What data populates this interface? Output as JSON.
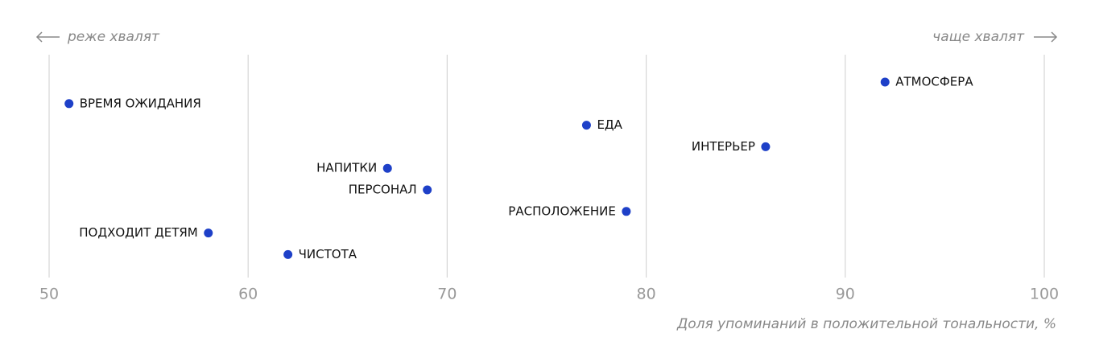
{
  "chart_data": {
    "type": "dot",
    "annotation_left": "реже хвалят",
    "annotation_right": "чаще хвалят",
    "x_label": "Доля упоминаний в положительной тональности, %",
    "categories": [
      "АТМОСФЕРА",
      "ВРЕМЯ ОЖИДАНИЯ",
      "ЕДА",
      "ИНТЕРЬЕР",
      "НАПИТКИ",
      "ПЕРСОНАЛ",
      "РАСПОЛОЖЕНИЕ",
      "ПОДХОДИТ ДЕТЯМ",
      "ЧИСТОТА"
    ],
    "values": [
      92,
      51,
      77,
      86,
      67,
      69,
      79,
      58,
      62
    ],
    "color": "#1e40c8",
    "xlim": [
      50,
      100
    ],
    "xticks": [
      50,
      60,
      70,
      80,
      90,
      100
    ],
    "grid": true
  }
}
